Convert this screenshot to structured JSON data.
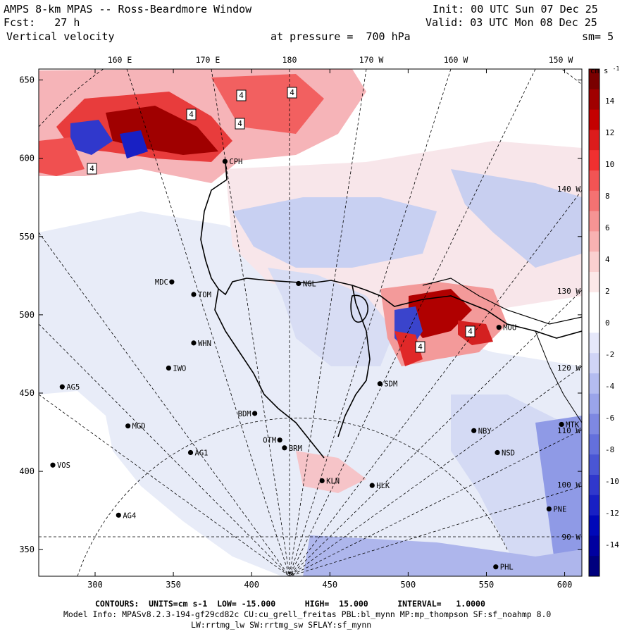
{
  "header": {
    "title": "AMPS 8-km MPAS -- Ross-Beardmore Window",
    "fcst_label": "Fcst:",
    "fcst_value": "27 h",
    "field": "Vertical velocity",
    "pressure_label": "at pressure =",
    "pressure_value": "700 hPa",
    "init": "Init: 00 UTC Sun 07 Dec 25",
    "valid": "Valid: 03 UTC Mon 08 Dec 25",
    "smoothing": "sm= 5"
  },
  "map": {
    "lon_labels_top": [
      "160 E",
      "170 E",
      "180",
      "170 W",
      "160 W",
      "150 W"
    ],
    "lon_labels_right": [
      "140 W",
      "130 W",
      "120 W",
      "110 W",
      "100 W",
      "90 W"
    ],
    "x_ticks": [
      "300",
      "350",
      "400",
      "450",
      "500",
      "550",
      "600"
    ],
    "y_ticks": [
      "650",
      "600",
      "550",
      "500",
      "450",
      "400",
      "350"
    ],
    "stations": [
      {
        "id": "CPH",
        "gx": 383,
        "gy": 598
      },
      {
        "id": "MDC",
        "gx": 349,
        "gy": 521
      },
      {
        "id": "NGL",
        "gx": 430,
        "gy": 520
      },
      {
        "id": "TOM",
        "gx": 363,
        "gy": 513
      },
      {
        "id": "MOU",
        "gx": 558,
        "gy": 492
      },
      {
        "id": "WHN",
        "gx": 363,
        "gy": 482
      },
      {
        "id": "IWO",
        "gx": 347,
        "gy": 466
      },
      {
        "id": "SDM",
        "gx": 482,
        "gy": 456
      },
      {
        "id": "AG5",
        "gx": 279,
        "gy": 454
      },
      {
        "id": "BDM",
        "gx": 402,
        "gy": 437
      },
      {
        "id": "NBY",
        "gx": 542,
        "gy": 426
      },
      {
        "id": "MTK",
        "gx": 598,
        "gy": 430
      },
      {
        "id": "MGD",
        "gx": 321,
        "gy": 429
      },
      {
        "id": "OTM",
        "gx": 418,
        "gy": 420
      },
      {
        "id": "BRM",
        "gx": 421,
        "gy": 415
      },
      {
        "id": "AG1",
        "gx": 361,
        "gy": 412
      },
      {
        "id": "NSD",
        "gx": 557,
        "gy": 412
      },
      {
        "id": "VOS",
        "gx": 273,
        "gy": 404
      },
      {
        "id": "KLN",
        "gx": 445,
        "gy": 394
      },
      {
        "id": "HLK",
        "gx": 477,
        "gy": 391
      },
      {
        "id": "PNE",
        "gx": 590,
        "gy": 376
      },
      {
        "id": "AG4",
        "gx": 315,
        "gy": 372
      },
      {
        "id": "PHL",
        "gx": 556,
        "gy": 339
      }
    ],
    "contour_label": "4"
  },
  "colorbar": {
    "units": "cm s",
    "units_exp": "-1",
    "labels": [
      "14",
      "12",
      "10",
      "8",
      "6",
      "4",
      "2",
      "0",
      "-2",
      "-4",
      "-6",
      "-8",
      "-10",
      "-12",
      "-14"
    ],
    "colors": [
      "#7a0000",
      "#a00000",
      "#c40000",
      "#dc1c1c",
      "#f03030",
      "#f25454",
      "#f47272",
      "#f69494",
      "#f8b2b2",
      "#fad0d0",
      "#fce8e8",
      "#ffffff",
      "#ffffff",
      "#e6e8fa",
      "#d0d4f6",
      "#b4bcf0",
      "#9aa4ea",
      "#7e88e2",
      "#6470dc",
      "#4a56d4",
      "#3038cc",
      "#1820c4",
      "#0008b8",
      "#0000a0",
      "#00007e"
    ]
  },
  "footer": {
    "line1": "CONTOURS:  UNITS=cm s-1  LOW= -15.000      HIGH=  15.000      INTERVAL=   1.0000",
    "line2": "Model Info: MPASv8.2.3-194-gf29cd82c CU:cu_grell_freitas PBL:bl_mynn MP:mp_thompson SF:sf_noahmp 8.0",
    "line3": "LW:rrtmg_lw SW:rrtmg_sw SFLAY:sf_mynn"
  }
}
